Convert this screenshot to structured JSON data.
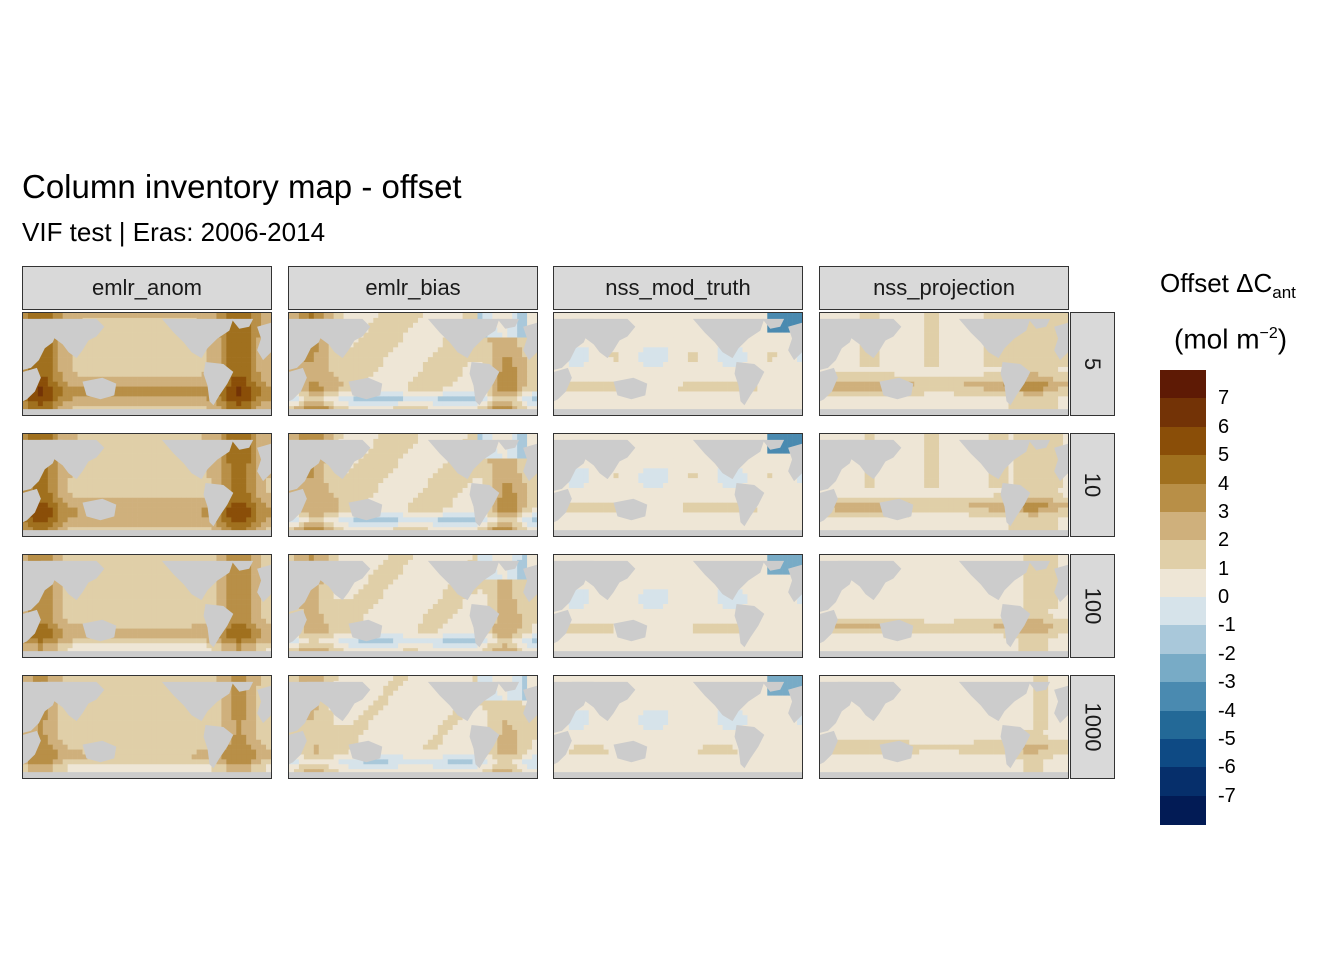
{
  "title": "Column inventory map - offset",
  "subtitle": "VIF test | Eras: 2006-2014",
  "columns": [
    "emlr_anom",
    "emlr_bias",
    "nss_mod_truth",
    "nss_projection"
  ],
  "rows": [
    "5",
    "10",
    "100",
    "1000"
  ],
  "legend": {
    "title_main": "Offset ΔC",
    "title_sub": "ant",
    "unit_main": "(mol m",
    "unit_sup": "−2",
    "unit_close": ")",
    "ticks": [
      "7",
      "6",
      "5",
      "4",
      "3",
      "2",
      "1",
      "0",
      "-1",
      "-2",
      "-3",
      "-4",
      "-5",
      "-6",
      "-7"
    ],
    "colors": [
      "#5e1a05",
      "#733306",
      "#8a4e08",
      "#a0701e",
      "#b88f47",
      "#cfb07c",
      "#e0cfa8",
      "#eee6d6",
      "#d6e3ea",
      "#a9c8da",
      "#78abc6",
      "#4a8ab0",
      "#236997",
      "#0e4a84",
      "#062f6b",
      "#021b55"
    ]
  },
  "map_colors": {
    "land": "#cccccc",
    "ocean_neutral": "#eee6d6"
  },
  "chart_data": {
    "type": "heatmap",
    "facets_x": [
      "emlr_anom",
      "emlr_bias",
      "nss_mod_truth",
      "nss_projection"
    ],
    "facets_y": [
      "5",
      "10",
      "100",
      "1000"
    ],
    "value_range": [
      -7,
      7
    ],
    "legend_placement": "right"
  }
}
